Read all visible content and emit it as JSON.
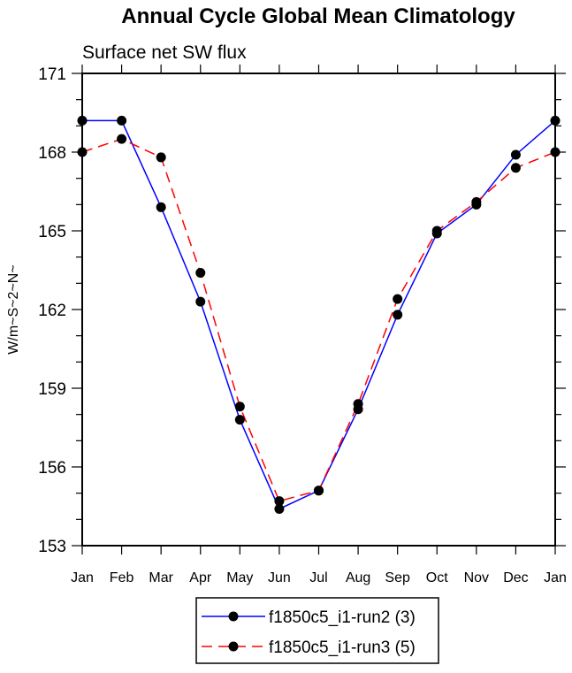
{
  "chart_data": {
    "type": "line",
    "title": "Annual Cycle Global Mean Climatology",
    "subtitle": "Surface net SW flux",
    "xlabel": "",
    "ylabel": "W/m~S~2~N~",
    "categories": [
      "Jan",
      "Feb",
      "Mar",
      "Apr",
      "May",
      "Jun",
      "Jul",
      "Aug",
      "Sep",
      "Oct",
      "Nov",
      "Dec",
      "Jan"
    ],
    "ylim": [
      153,
      171
    ],
    "yticks": [
      153,
      156,
      159,
      162,
      165,
      168,
      171
    ],
    "grid": false,
    "legend_position": "bottom-center",
    "series": [
      {
        "name": "f1850c5_i1-run2 (3)",
        "color": "#0000ff",
        "dash": "solid",
        "values": [
          169.2,
          169.2,
          165.9,
          162.3,
          157.8,
          154.4,
          155.1,
          158.2,
          161.8,
          164.9,
          166.0,
          167.9,
          169.2
        ]
      },
      {
        "name": "f1850c5_i1-run3 (5)",
        "color": "#ff0000",
        "dash": "dashed",
        "values": [
          168.0,
          168.5,
          167.8,
          163.4,
          158.3,
          154.7,
          155.1,
          158.4,
          162.4,
          165.0,
          166.1,
          167.4,
          168.0
        ]
      }
    ]
  }
}
